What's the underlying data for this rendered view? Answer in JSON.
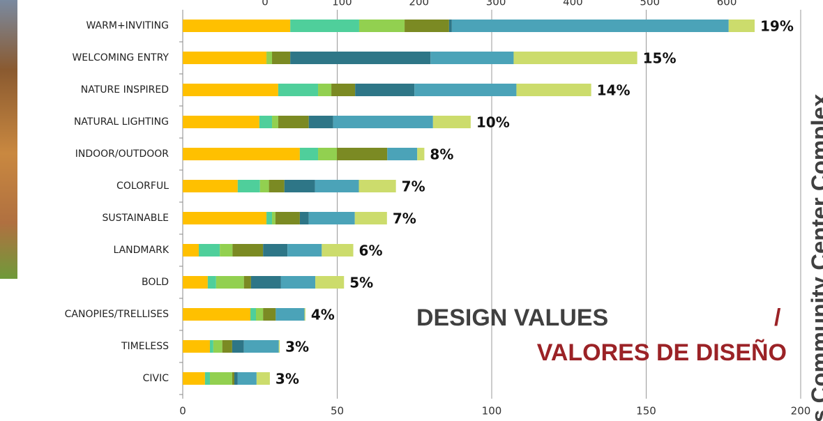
{
  "chart_data": {
    "type": "stacked-bar-horizontal",
    "title": "DESIGN VALUES",
    "title_separator": "/",
    "subtitle": "VALORES DE DISEÑO",
    "side_text": "s Community Center Complex",
    "categories": [
      "WARM+INVITING",
      "WELCOMING ENTRY",
      "NATURE INSPIRED",
      "NATURAL LIGHTING",
      "INDOOR/OUTDOOR",
      "COLORFUL",
      "SUSTAINABLE",
      "LANDMARK",
      "BOLD",
      "CANOPIES/TRELLISES",
      "TIMELESS",
      "CIVIC"
    ],
    "bar_labels": [
      "19%",
      "15%",
      "14%",
      "10%",
      "8%",
      "7%",
      "7%",
      "6%",
      "5%",
      "4%",
      "3%",
      "3%"
    ],
    "series": [
      {
        "color": "#ffc000",
        "values": [
          34.8,
          27.1,
          30.9,
          24.8,
          37.9,
          17.8,
          27.1,
          5.2,
          8.1,
          21.9,
          8.8,
          7.2
        ]
      },
      {
        "color": "#4fcf9b",
        "values": [
          22.3,
          0,
          12.9,
          4.1,
          5.9,
          7.2,
          1.8,
          6.8,
          2.7,
          1.8,
          1.1,
          1.6
        ]
      },
      {
        "color": "#92d050",
        "values": [
          14.7,
          1.8,
          4.3,
          2,
          6.1,
          2.9,
          1.1,
          4.1,
          9,
          2.3,
          2.9,
          7.2
        ]
      },
      {
        "color": "#7b8a23",
        "values": [
          14.4,
          5.9,
          7.7,
          9.9,
          16.3,
          5,
          7.9,
          9.9,
          2.3,
          4.1,
          3.2,
          0.7
        ]
      },
      {
        "color": "#2e7687",
        "values": [
          0.9,
          45.4,
          19.2,
          7.9,
          0,
          9.9,
          2.9,
          7.9,
          9.7,
          0,
          3.8,
          1.1
        ]
      },
      {
        "color": "#4ba3b8",
        "values": [
          89.6,
          26.9,
          33,
          32.3,
          9.7,
          14.2,
          14.9,
          11.1,
          11.1,
          9.3,
          11.3,
          6.1
        ]
      },
      {
        "color": "#ccdc6c",
        "values": [
          8.4,
          40,
          24.2,
          12.2,
          2.3,
          12,
          10.4,
          10.2,
          9.3,
          0.3,
          0.3,
          4.3
        ]
      }
    ],
    "xlim": [
      0,
      200
    ],
    "xticks": [
      0,
      50,
      100,
      150,
      200
    ],
    "x2lim": [
      -107,
      696
    ],
    "x2ticks": [
      0,
      100,
      200,
      300,
      400,
      500,
      600
    ],
    "grid": true
  }
}
